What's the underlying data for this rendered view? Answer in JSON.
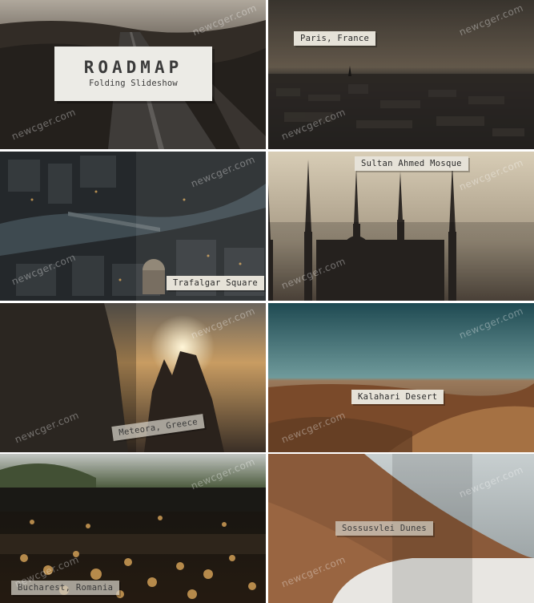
{
  "watermark": "newcger.com",
  "title_card": {
    "title": "ROADMAP",
    "subtitle": "Folding Slideshow"
  },
  "tiles": [
    {
      "id": "road",
      "label": ""
    },
    {
      "id": "paris",
      "label": "Paris, France"
    },
    {
      "id": "london",
      "label": "Trafalgar Square"
    },
    {
      "id": "mosque",
      "label": "Sultan Ahmed Mosque"
    },
    {
      "id": "meteora",
      "label": "Meteora, Greece"
    },
    {
      "id": "kalahari",
      "label": "Kalahari Desert"
    },
    {
      "id": "bucharest",
      "label": "Bucharest, Romania"
    },
    {
      "id": "sossusvlei",
      "label": "Sossusvlei Dunes"
    }
  ]
}
